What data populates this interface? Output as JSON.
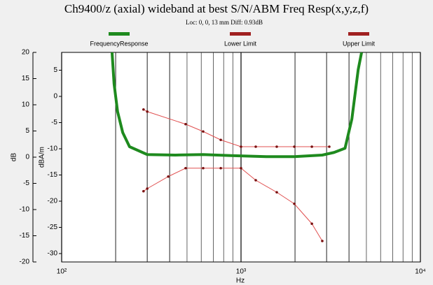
{
  "chart_data": {
    "type": "line",
    "title": "Ch9400/z (axial) wideband at best S/N/ABM Freq Resp(x,y,z,f)",
    "subtitle": "Loc: 0, 0, 13 mm Diff: 0.93dB",
    "xlabel": "Hz",
    "ylabel": "dB",
    "y2label": "dBA/m",
    "xscale": "log",
    "xlim": [
      100,
      10000
    ],
    "xticks": [
      {
        "value": 100,
        "label": "10²"
      },
      {
        "value": 1000,
        "label": "10³"
      },
      {
        "value": 10000,
        "label": "10⁴"
      }
    ],
    "ylim": [
      -20,
      20
    ],
    "yticks": [
      20,
      15,
      10,
      5,
      0,
      -5,
      -10,
      -15,
      -20
    ],
    "y2lim": [
      -31.6,
      8.4
    ],
    "y2ticks": [
      5,
      0,
      -5,
      -10,
      -15,
      -20,
      -25,
      -30
    ],
    "grid": true,
    "legend": "top",
    "series": [
      {
        "name": "FrequencyResponse",
        "color": "#1e8a1e",
        "width": 4,
        "marker": false,
        "x": [
          191,
          196,
          205,
          219,
          239,
          300,
          430,
          615,
          881,
          1383,
          1982,
          2838,
          3300,
          3800,
          4150,
          4500,
          4700
        ],
        "values": [
          20,
          14,
          8.7,
          4.7,
          2,
          0.5,
          0.4,
          0.5,
          0.3,
          0.1,
          0.1,
          0.4,
          0.9,
          1.7,
          7.3,
          16.7,
          20
        ]
      },
      {
        "name": "Lower Limit",
        "color": "#e05050",
        "width": 1,
        "marker": true,
        "x": [
          286,
          300,
          393,
          491,
          615,
          771,
          1000,
          1208,
          1582,
          1982,
          2483,
          2838
        ],
        "values": [
          -6.5,
          -6,
          -3.7,
          -2.1,
          -2.1,
          -2.1,
          -2.1,
          -4.4,
          -6.7,
          -8.9,
          -12.7,
          -16
        ]
      },
      {
        "name": "Upper Limit",
        "color": "#e05050",
        "width": 1,
        "marker": true,
        "x": [
          286,
          300,
          491,
          615,
          771,
          1000,
          1208,
          1582,
          1982,
          2483,
          3105
        ],
        "values": [
          9.1,
          8.7,
          6.3,
          4.9,
          3.3,
          2,
          2,
          2,
          2,
          2,
          2
        ]
      }
    ],
    "legend_colors": [
      "#1e8a1e",
      "#a02020",
      "#a02020"
    ]
  }
}
